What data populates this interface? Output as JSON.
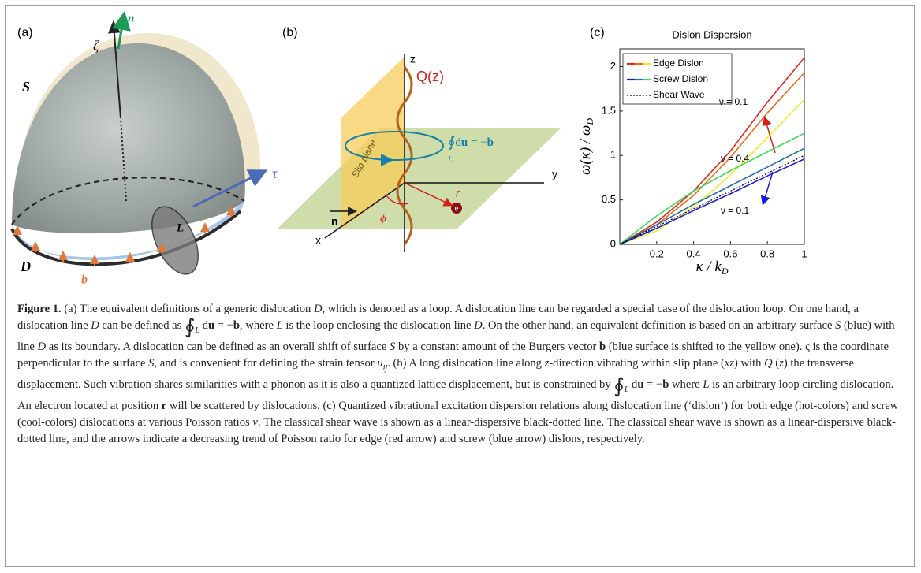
{
  "panel_a": {
    "label": "(a)",
    "zeta": "ζ",
    "n": "n",
    "S": "S",
    "tau": "τ",
    "L": "L",
    "D": "D",
    "b": "b"
  },
  "panel_b": {
    "label": "(b)",
    "z": "z",
    "Q": "Q(z)",
    "loop_int": "∮",
    "loop_sub": "L",
    "loop_d": "d",
    "loop_u": "u",
    "loop_eq": " = −",
    "loop_b": "b",
    "slip": "Slip plane",
    "y": "y",
    "x": "x",
    "n": "n",
    "phi": "ϕ",
    "r": "r",
    "e": "e"
  },
  "chart_data": {
    "type": "line",
    "panel_label": "(c)",
    "title": "Dislon Dispersion",
    "xlabel": "κ / k",
    "xlabel_sub": "D",
    "ylabel": "ω(κ) / ω",
    "ylabel_sub": "D",
    "x": [
      0,
      0.2,
      0.4,
      0.6,
      0.8,
      1
    ],
    "xlim": [
      0,
      1
    ],
    "ylim": [
      0,
      2.2
    ],
    "xticks": [
      0.2,
      0.4,
      0.6,
      0.8,
      1
    ],
    "yticks": [
      0,
      0.5,
      1,
      1.5,
      2
    ],
    "series": [
      {
        "color": "#e8261c",
        "values": [
          0,
          0.25,
          0.6,
          1.05,
          1.6,
          2.1
        ]
      },
      {
        "color": "#f06a1a",
        "values": [
          0,
          0.22,
          0.55,
          0.98,
          1.48,
          1.93
        ]
      },
      {
        "color": "#f2ea2a",
        "values": [
          0,
          0.15,
          0.42,
          0.78,
          1.2,
          1.63
        ]
      },
      {
        "color": "#3ddc5a",
        "values": [
          0,
          0.32,
          0.6,
          0.83,
          1.04,
          1.25
        ]
      },
      {
        "color": "#1f6fa8",
        "values": [
          0,
          0.22,
          0.45,
          0.66,
          0.87,
          1.08
        ]
      },
      {
        "color": "#1a1ae0",
        "values": [
          0,
          0.18,
          0.38,
          0.57,
          0.77,
          0.96
        ]
      },
      {
        "color": "#000000",
        "dash": true,
        "values": [
          0,
          0.2,
          0.4,
          0.6,
          0.8,
          1.0
        ]
      }
    ],
    "legend": [
      {
        "name": "Edge Dislon",
        "colors": [
          "#e8261c",
          "#f06a1a",
          "#f2ea2a"
        ]
      },
      {
        "name": "Screw Dislon",
        "colors": [
          "#1a1ae0",
          "#1f6fa8",
          "#3ddc5a"
        ]
      },
      {
        "name": "Shear Wave",
        "colors": [
          "#000000"
        ],
        "dash": true
      }
    ],
    "annotations": [
      "ν = 0.1",
      "ν = 0.4",
      "ν = 0.1"
    ]
  },
  "caption": {
    "runs": [
      {
        "text": "Figure 1.",
        "style": "b"
      },
      {
        "text": " (a) The equivalent definitions of a generic dislocation "
      },
      {
        "text": "D",
        "style": "i"
      },
      {
        "text": ", which is denoted as a loop. A dislocation line can be regarded a special case of the dislocation loop. On one hand, a dislocation line "
      },
      {
        "text": "D",
        "style": "i"
      },
      {
        "text": " can be defined as "
      },
      {
        "text": "∮",
        "style": "big"
      },
      {
        "text": "L",
        "style": "sub"
      },
      {
        "text": " d"
      },
      {
        "text": "u",
        "style": "b"
      },
      {
        "text": " = −"
      },
      {
        "text": "b",
        "style": "b"
      },
      {
        "text": ", where "
      },
      {
        "text": "L",
        "style": "i"
      },
      {
        "text": " is the loop enclosing the dislocation line "
      },
      {
        "text": "D",
        "style": "i"
      },
      {
        "text": ". On the other hand, an equivalent definition is based on an arbitrary surface "
      },
      {
        "text": "S",
        "style": "i"
      },
      {
        "text": " (blue) with line "
      },
      {
        "text": "D",
        "style": "i"
      },
      {
        "text": " as its boundary. A dislocation can be defined as an overall shift of surface "
      },
      {
        "text": "S",
        "style": "i"
      },
      {
        "text": " by a constant amount of the Burgers vector "
      },
      {
        "text": "b",
        "style": "b"
      },
      {
        "text": " (blue surface is shifted to the yellow one). ς is the coordinate perpendicular to the surface "
      },
      {
        "text": "S",
        "style": "i"
      },
      {
        "text": ", and is convenient for defining the strain tensor "
      },
      {
        "text": "u",
        "style": "i"
      },
      {
        "text": "ij",
        "style": "sub"
      },
      {
        "text": ". (b) A long dislocation line along "
      },
      {
        "text": "z",
        "style": "i"
      },
      {
        "text": "-direction vibrating within slip plane ("
      },
      {
        "text": "xz",
        "style": "i"
      },
      {
        "text": ") with "
      },
      {
        "text": "Q",
        "style": "i"
      },
      {
        "text": " ("
      },
      {
        "text": "z",
        "style": "i"
      },
      {
        "text": ") the transverse displacement. Such vibration shares similarities with a phonon as it is also a quantized lattice displacement, but is constrained by "
      },
      {
        "text": "∮",
        "style": "big"
      },
      {
        "text": "L",
        "style": "sub"
      },
      {
        "text": " d"
      },
      {
        "text": "u",
        "style": "b"
      },
      {
        "text": " = −"
      },
      {
        "text": "b",
        "style": "b"
      },
      {
        "text": " where "
      },
      {
        "text": "L",
        "style": "i"
      },
      {
        "text": " is an arbitrary loop circling dislocation. An electron located at position "
      },
      {
        "text": "r",
        "style": "b"
      },
      {
        "text": " will be scattered by dislocations. (c) Quantized vibrational excitation dispersion relations along dislocation line (‘dislon’) for both edge (hot-colors) and screw (cool-colors) dislocations at various Poisson ratios "
      },
      {
        "text": "ν",
        "style": "i"
      },
      {
        "text": ". The classical shear wave is shown as a linear-dispersive black-dotted line. The classical shear wave is shown as a linear-dispersive black-dotted line, and the arrows indicate a decreasing trend of Poisson ratio for edge (red arrow) and screw (blue arrow) dislons, respectively."
      }
    ]
  }
}
